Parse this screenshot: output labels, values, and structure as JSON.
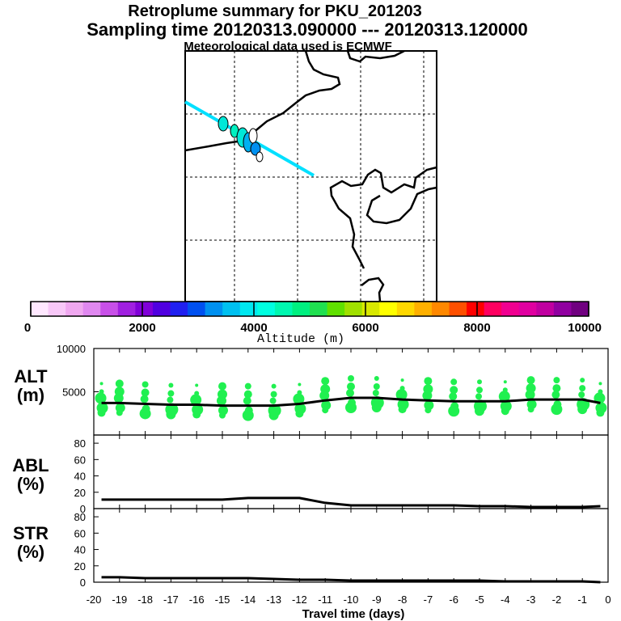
{
  "title": {
    "line1": "Retroplume summary for PKU_201203",
    "line2": "Sampling time   20120313.090000 --- 20120313.120000",
    "line3": "Meteorological data used is ECMWF"
  },
  "colorbar": {
    "label": "Altitude (m)",
    "ticks": [
      "0",
      "2000",
      "4000",
      "6000",
      "8000",
      "10000"
    ],
    "colors": [
      "#ffe8ff",
      "#f8c8f8",
      "#f0a8f0",
      "#e088f0",
      "#c850e8",
      "#a020e0",
      "#8000d8",
      "#5000e0",
      "#2020f0",
      "#0050f0",
      "#0090f0",
      "#00c0f0",
      "#00e8f0",
      "#00ffe0",
      "#00f8b0",
      "#00f080",
      "#20e050",
      "#60e000",
      "#a0e000",
      "#d8e800",
      "#ffff00",
      "#ffd800",
      "#ffb000",
      "#ff8800",
      "#ff5000",
      "#ff0000",
      "#ff0060",
      "#f00090",
      "#e000a0",
      "#c000a0",
      "#9000a0",
      "#700080"
    ]
  },
  "map": {
    "trajectory_color": "#00e0ff",
    "grid": "dashed"
  },
  "chart_data": [
    {
      "type": "line",
      "name": "ALT",
      "ylabel_line1": "ALT",
      "ylabel_line2": "(m)",
      "ylim": [
        0,
        10000
      ],
      "yticks": [
        "10000",
        "5000"
      ],
      "x": [
        -19.7,
        -19,
        -18,
        -17,
        -16,
        -15,
        -14,
        -13,
        -12,
        -11,
        -10,
        -9,
        -8,
        -7,
        -6,
        -5,
        -4,
        -3,
        -2,
        -1,
        -0.3
      ],
      "y": [
        3700,
        3700,
        3600,
        3500,
        3500,
        3400,
        3400,
        3400,
        3600,
        4000,
        4300,
        4300,
        4100,
        4000,
        3900,
        3900,
        3900,
        4100,
        4100,
        4100,
        3700
      ],
      "scatter_color": "#20f050"
    },
    {
      "type": "line",
      "name": "ABL",
      "ylabel_line1": "ABL",
      "ylabel_line2": "(%)",
      "ylim": [
        0,
        90
      ],
      "yticks": [
        "80",
        "60",
        "40",
        "20",
        "0"
      ],
      "x": [
        -19.7,
        -19,
        -18,
        -17,
        -16,
        -15,
        -14,
        -13,
        -12,
        -11,
        -10,
        -9,
        -8,
        -7,
        -6,
        -5,
        -4,
        -3,
        -2,
        -1,
        -0.3
      ],
      "y": [
        11,
        11,
        11,
        11,
        11,
        11,
        13,
        13,
        13,
        7,
        4,
        4,
        4,
        4,
        4,
        3,
        3,
        2,
        2,
        2,
        3
      ]
    },
    {
      "type": "line",
      "name": "STR",
      "ylabel_line1": "STR",
      "ylabel_line2": "(%)",
      "ylim": [
        0,
        90
      ],
      "yticks": [
        "80",
        "60",
        "40",
        "20",
        "0"
      ],
      "x": [
        -19.7,
        -19,
        -18,
        -17,
        -16,
        -15,
        -14,
        -13,
        -12,
        -11,
        -10,
        -9,
        -8,
        -7,
        -6,
        -5,
        -4,
        -3,
        -2,
        -1,
        -0.3
      ],
      "y": [
        6,
        6,
        5,
        5,
        5,
        5,
        5,
        4,
        3,
        3,
        2,
        2,
        2,
        2,
        2,
        2,
        1,
        1,
        1,
        1,
        0
      ]
    }
  ],
  "xaxis": {
    "label": "Travel time (days)",
    "ticks": [
      "-20",
      "-19",
      "-18",
      "-17",
      "-16",
      "-15",
      "-14",
      "-13",
      "-12",
      "-11",
      "-10",
      "-9",
      "-8",
      "-7",
      "-6",
      "-5",
      "-4",
      "-3",
      "-2",
      "-1",
      "0"
    ],
    "range": [
      -20,
      0
    ]
  }
}
